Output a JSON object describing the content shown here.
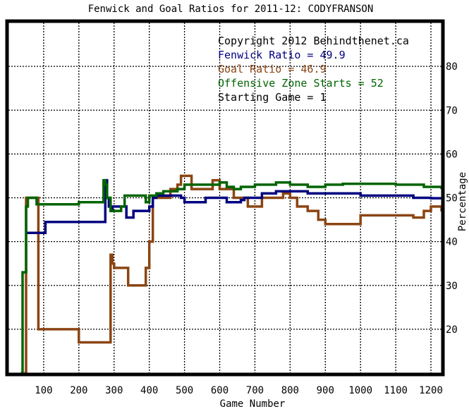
{
  "chart_data": {
    "type": "line",
    "title": "Fenwick and Goal Ratios for 2011-12: CODYFRANSON",
    "xlabel": "Game Number",
    "ylabel": "Percentage",
    "xlim": [
      0,
      1230
    ],
    "ylim": [
      10,
      90
    ],
    "xticks": [
      100,
      200,
      300,
      400,
      500,
      600,
      700,
      800,
      900,
      1000,
      1100,
      1200
    ],
    "yticks": [
      20,
      30,
      40,
      50,
      60,
      70,
      80
    ],
    "grid": true,
    "legend_placement": "top-right",
    "annotations": [
      {
        "text": "Copyright 2012 Behindthenet.ca",
        "color": "#000000"
      },
      {
        "text": "Fenwick Ratio = 49.9",
        "color": "#000080"
      },
      {
        "text": "Goal Ratio = 46.9",
        "color": "#8B4513"
      },
      {
        "text": "Offensive Zone Starts = 52",
        "color": "#006400"
      },
      {
        "text": "Starting Game = 1",
        "color": "#000000"
      }
    ],
    "series": [
      {
        "name": "Fenwick Ratio",
        "color": "#000080",
        "x": [
          50,
          55,
          60,
          90,
          100,
          105,
          190,
          195,
          270,
          275,
          280,
          285,
          290,
          295,
          300,
          320,
          330,
          335,
          350,
          355,
          400,
          410,
          420,
          480,
          490,
          500,
          540,
          560,
          580,
          600,
          620,
          640,
          660,
          670,
          690,
          700,
          720,
          740,
          760,
          800,
          850,
          900,
          950,
          1000,
          1050,
          1100,
          1150,
          1200,
          1230
        ],
        "y": [
          42,
          42,
          42,
          42,
          42,
          44.5,
          44.5,
          44.5,
          44.5,
          54,
          50,
          48,
          47,
          48,
          48,
          48,
          48,
          45.5,
          45.5,
          47,
          48,
          50,
          50.5,
          50.5,
          50,
          49,
          49,
          50,
          50,
          50,
          49,
          49,
          49.5,
          50,
          50,
          50,
          51,
          51,
          51.5,
          51.5,
          51,
          51,
          51,
          50.5,
          50.5,
          50.5,
          50,
          49.9,
          49.9
        ]
      },
      {
        "name": "Goal Ratio",
        "color": "#8B4513",
        "x": [
          45,
          50,
          55,
          70,
          80,
          85,
          90,
          180,
          190,
          200,
          280,
          290,
          295,
          300,
          310,
          330,
          340,
          380,
          390,
          400,
          410,
          420,
          440,
          460,
          470,
          480,
          490,
          500,
          520,
          540,
          560,
          580,
          600,
          620,
          640,
          660,
          680,
          690,
          700,
          720,
          740,
          760,
          780,
          800,
          820,
          850,
          880,
          900,
          950,
          1000,
          1050,
          1100,
          1130,
          1150,
          1180,
          1200,
          1230
        ],
        "y": [
          10,
          50,
          50,
          50,
          50,
          20,
          20,
          20,
          20,
          17,
          17,
          37,
          35,
          34,
          34,
          34,
          30,
          30,
          34,
          40,
          50,
          50,
          50,
          52,
          52,
          53,
          55,
          55,
          52,
          52,
          52,
          54,
          52,
          52,
          50,
          50,
          48,
          48,
          48,
          50,
          50,
          50,
          51,
          50,
          48,
          47,
          45,
          44,
          44,
          46,
          46,
          46,
          46,
          45.5,
          47,
          48,
          46.9
        ]
      },
      {
        "name": "Offensive Zone Starts",
        "color": "#006400",
        "x": [
          35,
          40,
          45,
          50,
          55,
          70,
          80,
          100,
          200,
          260,
          265,
          270,
          275,
          280,
          290,
          300,
          320,
          330,
          380,
          390,
          400,
          420,
          440,
          460,
          480,
          500,
          520,
          540,
          560,
          580,
          600,
          620,
          640,
          660,
          680,
          700,
          720,
          740,
          760,
          780,
          800,
          850,
          900,
          950,
          1000,
          1050,
          1100,
          1150,
          1180,
          1200,
          1230
        ],
        "y": [
          10,
          33,
          33,
          48,
          50,
          50,
          48.5,
          48.5,
          49,
          49,
          49,
          54,
          53,
          50,
          47,
          47,
          48,
          50.5,
          50.5,
          49,
          50.5,
          51,
          51.5,
          51.5,
          52,
          53,
          53,
          53,
          53,
          53,
          53.5,
          52.5,
          52,
          52.5,
          52.5,
          53,
          53,
          53,
          53.5,
          53.5,
          53,
          52.5,
          53,
          53.2,
          53.2,
          53.2,
          53,
          53,
          52.5,
          52.5,
          52
        ]
      }
    ]
  }
}
